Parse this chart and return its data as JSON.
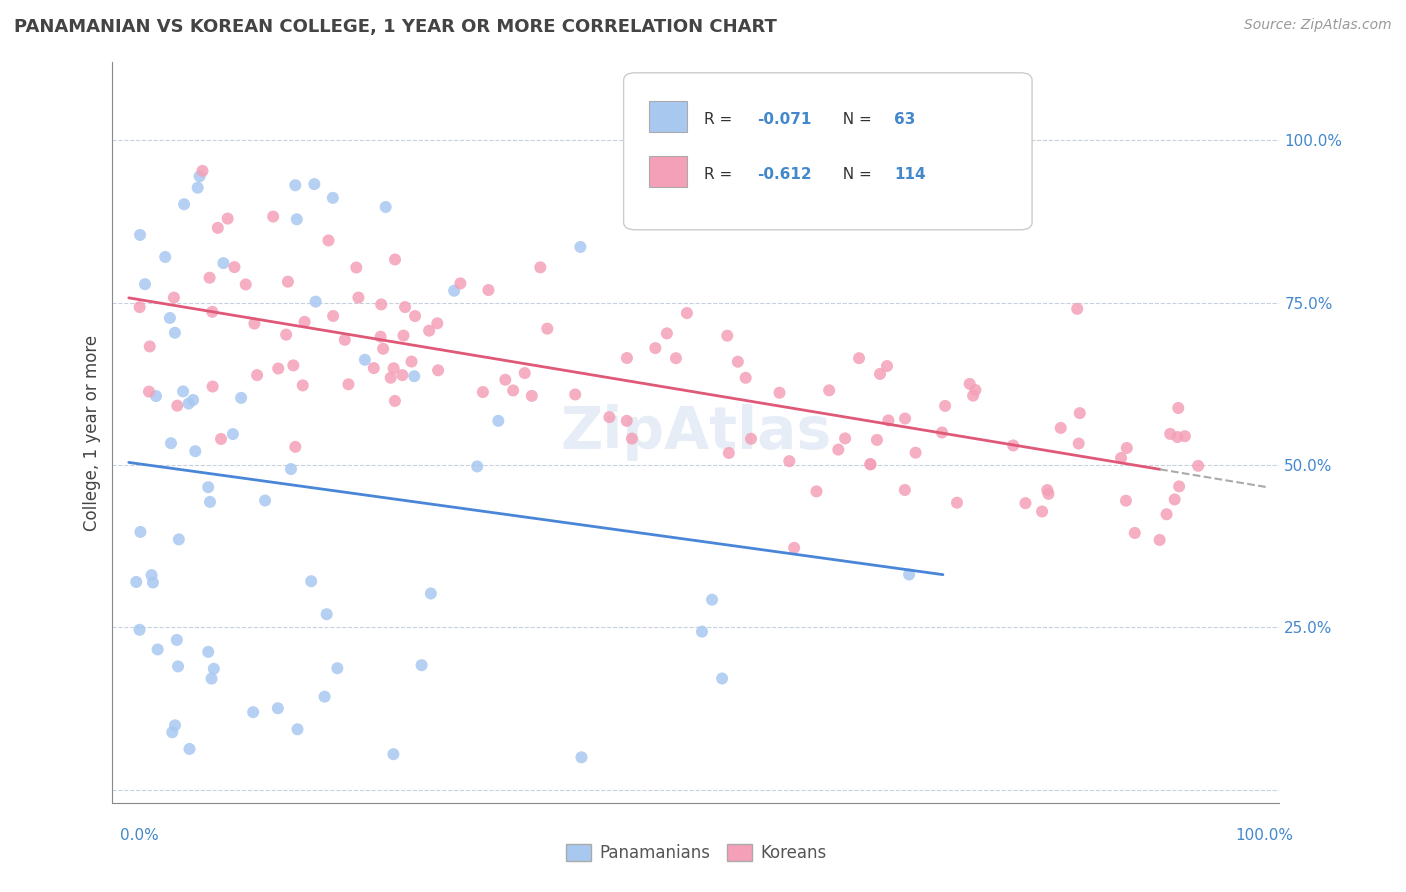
{
  "title": "PANAMANIAN VS KOREAN COLLEGE, 1 YEAR OR MORE CORRELATION CHART",
  "source": "Source: ZipAtlas.com",
  "ylabel": "College, 1 year or more",
  "panamanian_color": "#a8c8f0",
  "korean_color": "#f4a0b8",
  "panamanian_R": -0.071,
  "panamanian_N": 63,
  "korean_R": -0.612,
  "korean_N": 114,
  "trend_blue": "#4a86d8",
  "trend_pink": "#e05878",
  "trend_dash": "#aaaaaa",
  "watermark": "ZipAtlas",
  "ytick_vals": [
    0.0,
    0.25,
    0.5,
    0.75,
    1.0
  ],
  "ytick_labels": [
    "",
    "25.0%",
    "50.0%",
    "75.0%",
    "100.0%"
  ],
  "grid_color": "#c8d0dc",
  "label_color": "#4488cc",
  "title_color": "#444444",
  "source_color": "#999999"
}
